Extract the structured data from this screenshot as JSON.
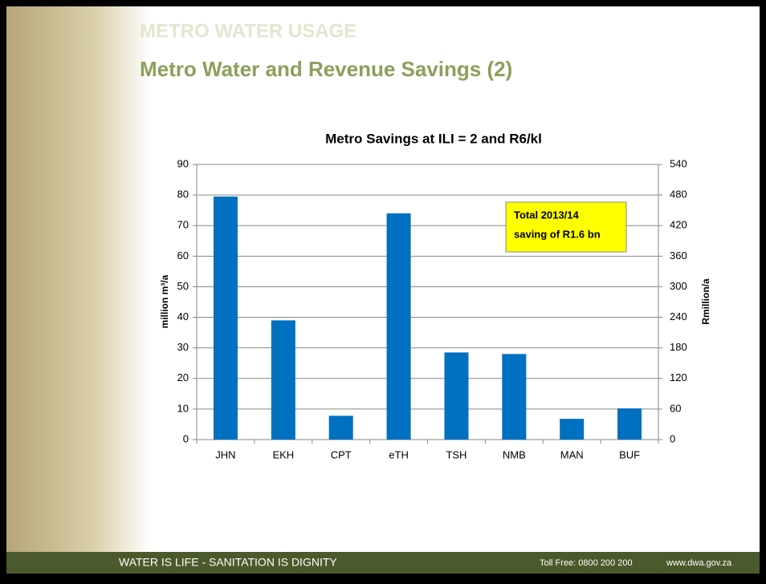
{
  "header": {
    "section": "METRO WATER USAGE",
    "title": "Metro Water and Revenue Savings (2)"
  },
  "footer": {
    "slogan": "WATER IS LIFE - SANITATION IS DIGNITY",
    "phone": "Toll Free: 0800 200 200",
    "website": "www.dwa.gov.za"
  },
  "chart_data": {
    "type": "bar",
    "title": "Metro Savings at ILI = 2 and R6/kl",
    "categories": [
      "JHN",
      "EKH",
      "CPT",
      "eTH",
      "TSH",
      "NMB",
      "MAN",
      "BUF"
    ],
    "values": [
      79.5,
      39,
      7.8,
      74,
      28.5,
      28,
      6.8,
      10.2
    ],
    "color": "#0070c0",
    "ylim": [
      0,
      90
    ],
    "yticks": [
      0,
      10,
      20,
      30,
      40,
      50,
      60,
      70,
      80,
      90
    ],
    "y2lim": [
      0,
      540
    ],
    "y2ticks": [
      0,
      60,
      120,
      180,
      240,
      300,
      360,
      420,
      480,
      540
    ],
    "ylabel": "million m³/a",
    "y2label": "Rmillion/a",
    "annotation": [
      "Total 2013/14",
      "saving of R1.6 bn"
    ],
    "grid": true
  }
}
